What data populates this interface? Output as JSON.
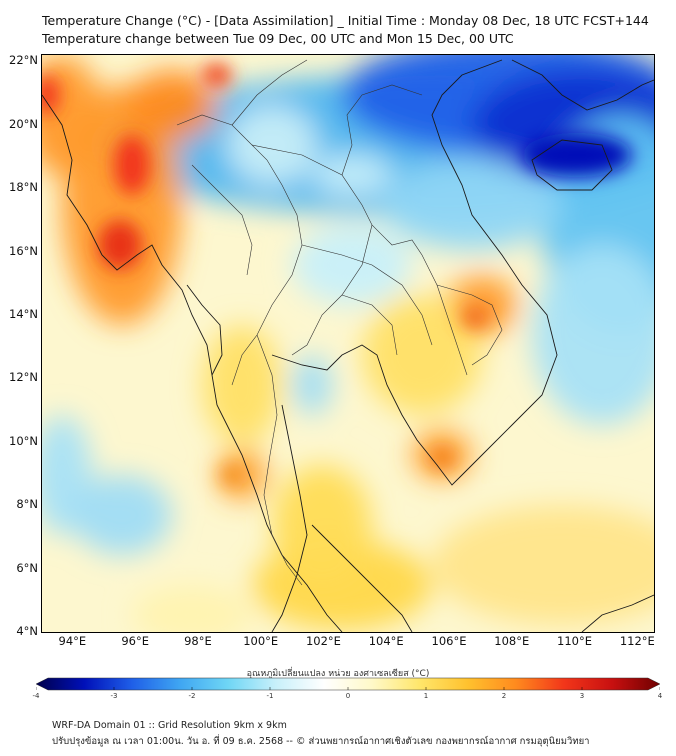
{
  "title_line1": "Temperature Change (°C) - [Data Assimilation] _ Initial Time : Monday 08 Dec, 18 UTC FCST+144",
  "title_line2": "Temperature change between Tue 09 Dec, 00 UTC and Mon 15 Dec, 00 UTC",
  "map": {
    "lon_min": 93.0,
    "lon_max": 112.5,
    "lat_min": 4.0,
    "lat_max": 22.2,
    "lat_ticks": [
      {
        "value": 22,
        "label": "22°N"
      },
      {
        "value": 20,
        "label": "20°N"
      },
      {
        "value": 18,
        "label": "18°N"
      },
      {
        "value": 16,
        "label": "16°N"
      },
      {
        "value": 14,
        "label": "14°N"
      },
      {
        "value": 12,
        "label": "12°N"
      },
      {
        "value": 10,
        "label": "10°N"
      },
      {
        "value": 8,
        "label": "8°N"
      },
      {
        "value": 6,
        "label": "6°N"
      },
      {
        "value": 4,
        "label": "4°N"
      }
    ],
    "lon_ticks": [
      {
        "value": 94,
        "label": "94°E"
      },
      {
        "value": 96,
        "label": "96°E"
      },
      {
        "value": 98,
        "label": "98°E"
      },
      {
        "value": 100,
        "label": "100°E"
      },
      {
        "value": 102,
        "label": "102°E"
      },
      {
        "value": 104,
        "label": "104°E"
      },
      {
        "value": 106,
        "label": "106°E"
      },
      {
        "value": 108,
        "label": "108°E"
      },
      {
        "value": 110,
        "label": "110°E"
      },
      {
        "value": 112,
        "label": "112°E"
      }
    ]
  },
  "colorbar": {
    "title": "อุณหภูมิเปลี่ยนแปลง หน่วย องศาเซลเซียส (°C)",
    "min": -4,
    "max": 4,
    "tick_values": [
      -4,
      -3,
      -2,
      -1,
      0,
      1,
      2,
      3,
      4
    ],
    "tick_labels": [
      "-4",
      "-3",
      "-2",
      "-1",
      "0",
      "1",
      "2",
      "3",
      "4"
    ],
    "colors": [
      "#00004a",
      "#0010b8",
      "#1f5fe8",
      "#3fa6f2",
      "#6fd6f5",
      "#c8f0fa",
      "#ffffff",
      "#fff9c8",
      "#ffe66a",
      "#ffc12e",
      "#ff8a1e",
      "#f2361a",
      "#c81010",
      "#6e0000"
    ]
  },
  "footer_line1": "WRF-DA Domain 01 :: Grid Resolution 9km x 9km",
  "footer_line2": "ปรับปรุงข้อมูล ณ เวลา 01:00น. วัน อ. ที่ 09 ธ.ค. 2568 -- © ส่วนพยากรณ์อากาศเชิงตัวเลข กองพยากรณ์อากาศ กรมอุตุนิยมวิทยา"
}
